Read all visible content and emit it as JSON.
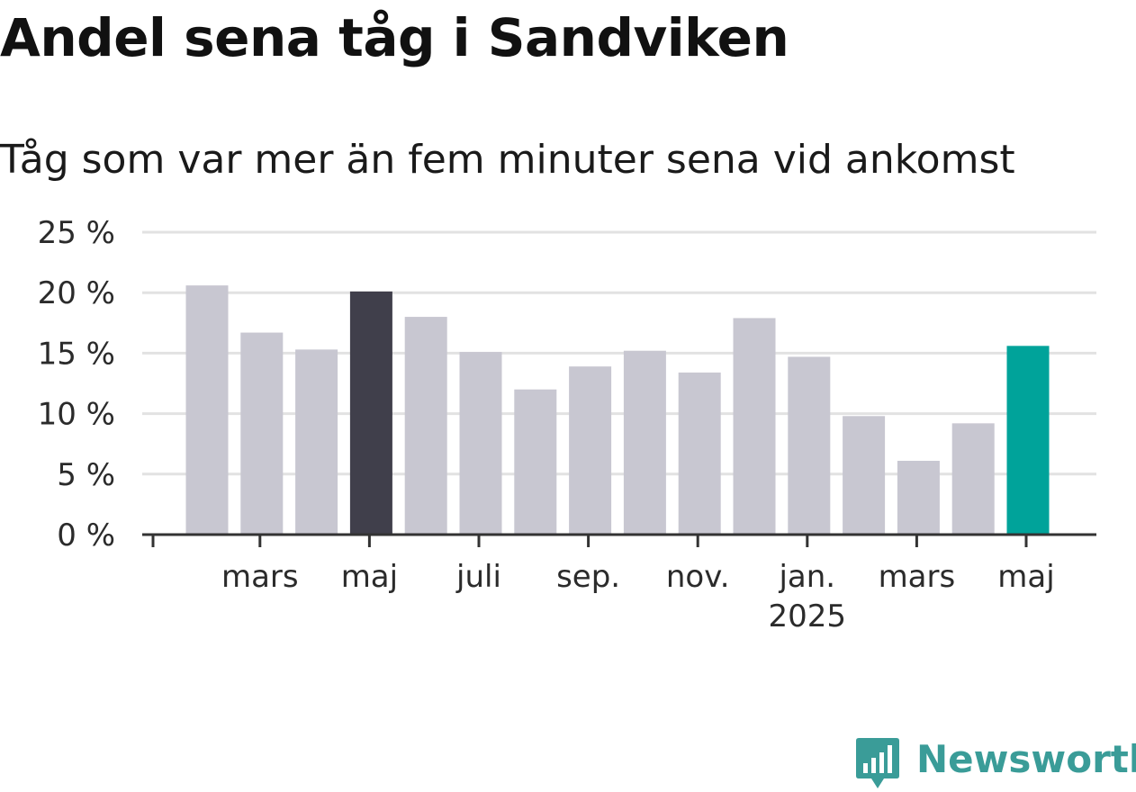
{
  "title": "Andel sena tåg i Sandviken",
  "subtitle": "Tåg som var mer än fem minuter sena vid ankomst",
  "colors": {
    "bar_default": "#c8c7d1",
    "bar_highlight_previous": "#403f4b",
    "bar_highlight_current": "#00a39a",
    "grid": "#e2e2e2",
    "axis": "#333333",
    "logo": "#3a9c98"
  },
  "logo": {
    "text": "Newsworthy",
    "icon": "bar-chart-speech-bubble-icon"
  },
  "chart_data": {
    "type": "bar",
    "title": "Andel sena tåg i Sandviken",
    "subtitle": "Tåg som var mer än fem minuter sena vid ankomst",
    "xlabel": "",
    "ylabel": "",
    "ylim": [
      0,
      25
    ],
    "yticks": [
      0,
      5,
      10,
      15,
      20,
      25
    ],
    "ytick_labels": [
      "0 %",
      "5 %",
      "10 %",
      "15 %",
      "20 %",
      "25 %"
    ],
    "grid": true,
    "x_dates": [
      "2024-02",
      "2024-03",
      "2024-04",
      "2024-05",
      "2024-06",
      "2024-07",
      "2024-08",
      "2024-09",
      "2024-10",
      "2024-11",
      "2024-12",
      "2025-01",
      "2025-02",
      "2025-03",
      "2025-04",
      "2025-05"
    ],
    "values": [
      20.6,
      16.7,
      15.3,
      20.1,
      18.0,
      15.1,
      12.0,
      13.9,
      15.2,
      13.4,
      17.9,
      14.7,
      9.8,
      6.1,
      9.2,
      15.6
    ],
    "highlight": {
      "2024-05": "previous_year",
      "2025-05": "current"
    },
    "xtick_labels": [
      {
        "month": "2024-03",
        "label": "mars",
        "sub": ""
      },
      {
        "month": "2024-05",
        "label": "maj",
        "sub": ""
      },
      {
        "month": "2024-07",
        "label": "juli",
        "sub": ""
      },
      {
        "month": "2024-09",
        "label": "sep.",
        "sub": ""
      },
      {
        "month": "2024-11",
        "label": "nov.",
        "sub": ""
      },
      {
        "month": "2025-01",
        "label": "jan.",
        "sub": "2025"
      },
      {
        "month": "2025-03",
        "label": "mars",
        "sub": ""
      },
      {
        "month": "2025-05",
        "label": "maj",
        "sub": ""
      }
    ]
  }
}
